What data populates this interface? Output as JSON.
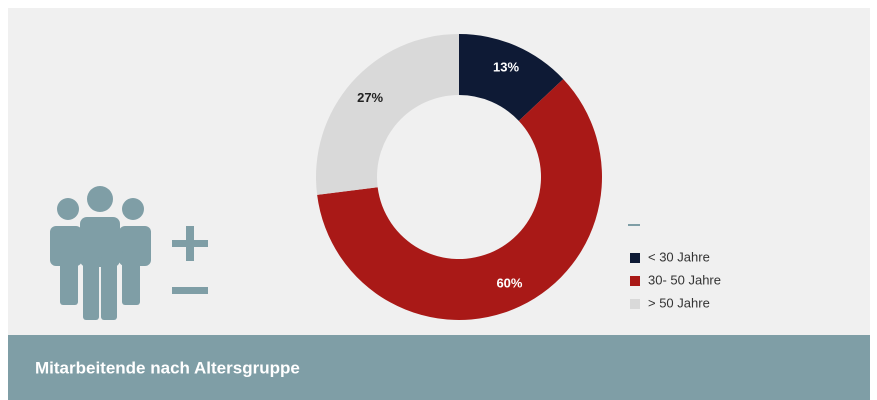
{
  "chart_data": {
    "type": "donut",
    "title": "Mitarbeitende nach Altersgruppe",
    "categories": [
      "< 30 Jahre",
      "30- 50 Jahre",
      "> 50 Jahre"
    ],
    "values": [
      13,
      60,
      27
    ],
    "value_labels": [
      "13%",
      "60%",
      "27%"
    ],
    "colors": [
      "#0e1a35",
      "#a91917",
      "#d9d9d9"
    ],
    "legend": "right"
  }
}
